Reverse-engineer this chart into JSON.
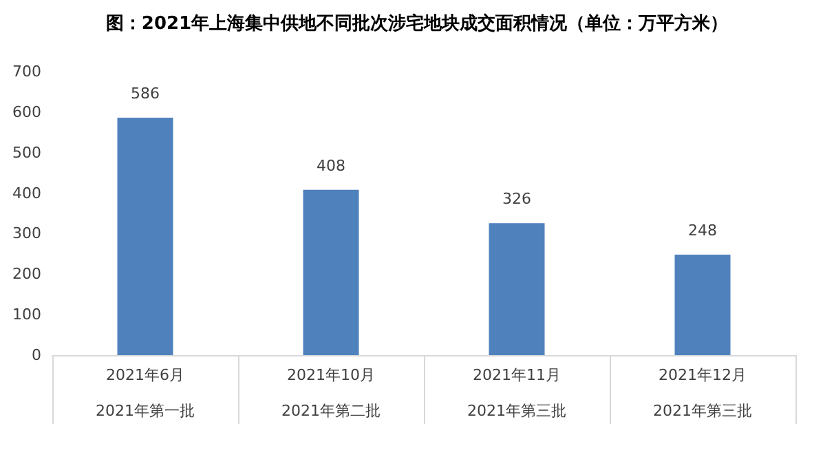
{
  "chart_data": {
    "type": "bar",
    "title": "图：2021年上海集中供地不同批次涉宅地块成交面积情况（单位：万平方米）",
    "categories": [
      "2021年6月\n\n2021年第一批",
      "2021年10月\n\n2021年第二批",
      "2021年11月\n\n2021年第三批",
      "2021年12月\n\n2021年第三批"
    ],
    "values": [
      586,
      408,
      326,
      248
    ],
    "color": "#4f81bd",
    "ylim": [
      0,
      700
    ],
    "yticks": [
      0,
      100,
      200,
      300,
      400,
      500,
      600,
      700
    ],
    "data_labels": true,
    "grid": false
  }
}
